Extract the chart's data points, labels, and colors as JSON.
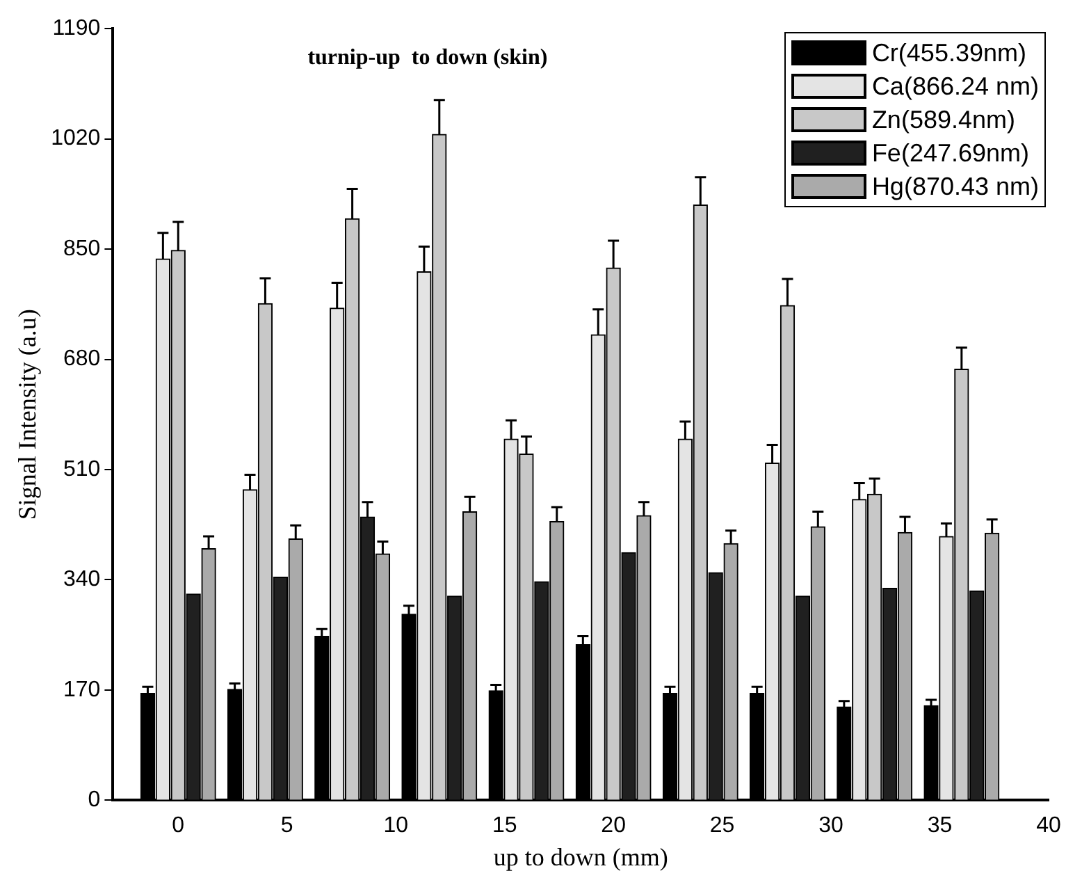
{
  "chart_data": {
    "type": "bar",
    "title": "turnip-up  to down (skin)",
    "xlabel": "up to down (mm)",
    "ylabel": "Signal Intensity (a.u)",
    "x": [
      0,
      4,
      8,
      12,
      16,
      20,
      24,
      28,
      32,
      36
    ],
    "xlim": [
      -3,
      40
    ],
    "xticks": [
      0,
      5,
      10,
      15,
      20,
      25,
      30,
      35,
      40
    ],
    "ylim": [
      0,
      1190
    ],
    "yticks": [
      0,
      170,
      340,
      510,
      680,
      850,
      1020,
      1190
    ],
    "grid": false,
    "legend": "top right",
    "series": [
      {
        "name": "Cr(455.39nm)",
        "color": "#000000",
        "values": [
          165,
          171,
          253,
          287,
          169,
          240,
          165,
          165,
          144,
          146
        ],
        "errors": [
          [
            165,
            175
          ],
          [
            171,
            180
          ],
          [
            253,
            264
          ],
          [
            287,
            300
          ],
          [
            169,
            178
          ],
          [
            240,
            253
          ],
          [
            165,
            175
          ],
          [
            165,
            175
          ],
          [
            144,
            153
          ],
          [
            146,
            155
          ]
        ]
      },
      {
        "name": "Ca(866.24 nm)",
        "color": "#e4e4e4",
        "values": [
          835,
          479,
          759,
          815,
          557,
          718,
          557,
          520,
          464,
          407
        ],
        "errors": [
          [
            835,
            875
          ],
          [
            479,
            502
          ],
          [
            759,
            798
          ],
          [
            815,
            854
          ],
          [
            557,
            586
          ],
          [
            718,
            757
          ],
          [
            557,
            584
          ],
          [
            520,
            548
          ],
          [
            464,
            489
          ],
          [
            407,
            427
          ]
        ]
      },
      {
        "name": "Zn(589.4nm)",
        "color": "#c8c8c8",
        "values": [
          848,
          766,
          897,
          1027,
          534,
          821,
          918,
          763,
          472,
          665
        ],
        "errors": [
          [
            848,
            892
          ],
          [
            766,
            805
          ],
          [
            897,
            943
          ],
          [
            1027,
            1080
          ],
          [
            534,
            561
          ],
          [
            821,
            863
          ],
          [
            918,
            961
          ],
          [
            763,
            804
          ],
          [
            472,
            496
          ],
          [
            665,
            698
          ]
        ]
      },
      {
        "name": "Fe(247.69nm)",
        "color": "#202020",
        "values": [
          318,
          344,
          437,
          315,
          337,
          382,
          351,
          315,
          327,
          323
        ],
        "errors": [
          null,
          null,
          [
            437,
            460
          ],
          null,
          null,
          null,
          null,
          null,
          null,
          null
        ]
      },
      {
        "name": "Hg(870.43 nm)",
        "color": "#aaaaaa",
        "values": [
          388,
          403,
          380,
          445,
          430,
          439,
          396,
          422,
          413,
          412
        ],
        "errors": [
          [
            388,
            407
          ],
          [
            403,
            424
          ],
          [
            380,
            399
          ],
          [
            445,
            468
          ],
          [
            430,
            452
          ],
          [
            439,
            460
          ],
          [
            396,
            416
          ],
          [
            422,
            445
          ],
          [
            413,
            437
          ],
          [
            412,
            433
          ]
        ]
      }
    ]
  }
}
